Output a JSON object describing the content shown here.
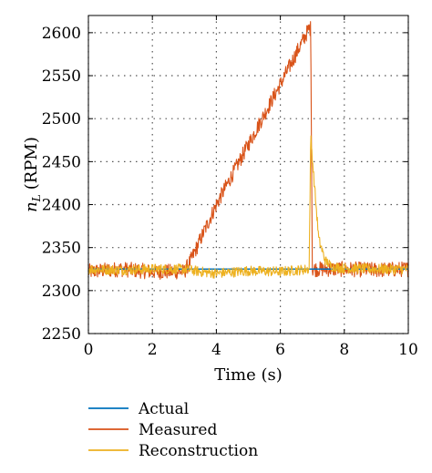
{
  "chart_data": {
    "type": "line",
    "title": "",
    "xlabel": "Time (s)",
    "ylabel_main": "n",
    "ylabel_sub": "L",
    "ylabel_unit": "(RPM)",
    "xlim": [
      0,
      10
    ],
    "ylim": [
      2250,
      2620
    ],
    "xticks": [
      "0",
      "2",
      "4",
      "6",
      "8",
      "10"
    ],
    "yticks": [
      "2250",
      "2300",
      "2350",
      "2400",
      "2450",
      "2500",
      "2550",
      "2600"
    ],
    "grid": true,
    "legend_position": "below",
    "series": [
      {
        "name": "Actual",
        "color": "#0072BD",
        "x": [
          0,
          3.0,
          7.0,
          10
        ],
        "y": [
          2325,
          2325,
          2325,
          2325
        ]
      },
      {
        "name": "Measured",
        "color": "#D95319",
        "x": [
          0,
          1.0,
          2.0,
          3.0,
          3.2,
          4.0,
          5.0,
          6.0,
          6.9,
          6.95,
          7.0,
          8.0,
          9.0,
          10
        ],
        "y": [
          2322,
          2325,
          2322,
          2322,
          2335,
          2400,
          2470,
          2540,
          2605,
          2605,
          2325,
          2325,
          2324,
          2325
        ],
        "noise_amplitude": 9
      },
      {
        "name": "Reconstruction",
        "color": "#EDB120",
        "x": [
          0,
          1.0,
          2.0,
          3.0,
          3.5,
          4.0,
          5.0,
          6.0,
          6.9,
          6.95,
          7.05,
          7.2,
          7.4,
          7.6,
          8.0,
          9.0,
          10
        ],
        "y": [
          2325,
          2324,
          2325,
          2325,
          2322,
          2320,
          2323,
          2322,
          2325,
          2480,
          2430,
          2360,
          2335,
          2328,
          2326,
          2325,
          2325
        ],
        "noise_amplitude": 6
      }
    ]
  }
}
